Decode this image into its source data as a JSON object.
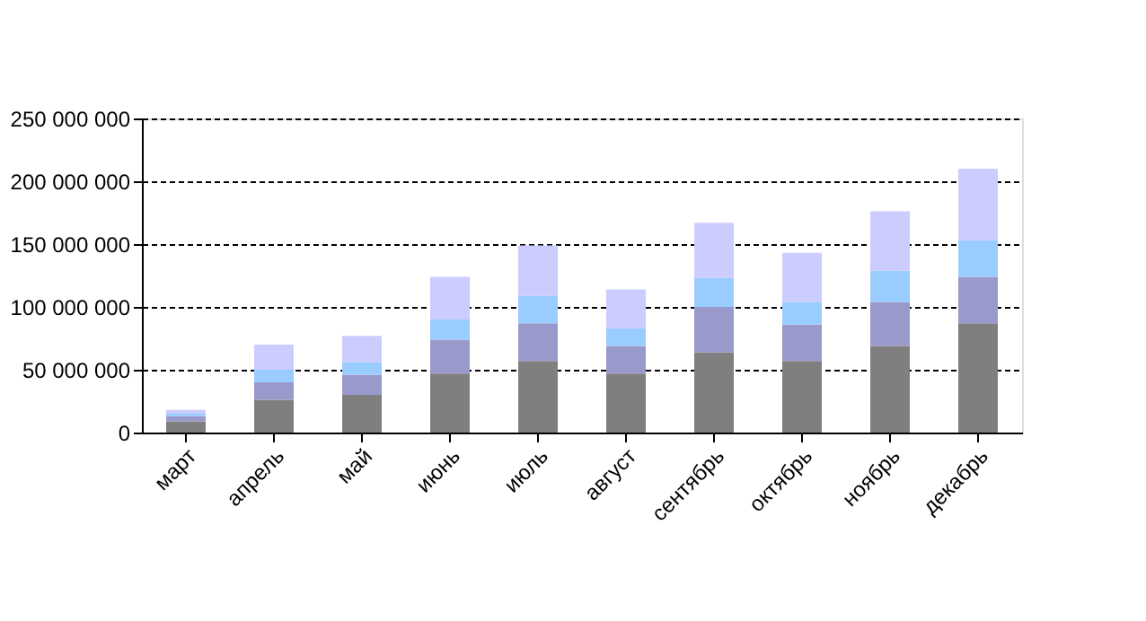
{
  "chart_data": {
    "type": "bar",
    "stacked": true,
    "categories": [
      "март",
      "апрель",
      "май",
      "июнь",
      "июль",
      "август",
      "сентябрь",
      "октябрь",
      "ноябрь",
      "декабрь"
    ],
    "series": [
      {
        "color": "#7f7f7f",
        "values": [
          9000000,
          26000000,
          30000000,
          47000000,
          57000000,
          47000000,
          64000000,
          57000000,
          69000000,
          87000000
        ]
      },
      {
        "color": "#9999cc",
        "values": [
          4000000,
          14000000,
          16000000,
          27000000,
          30000000,
          22000000,
          36000000,
          29000000,
          35000000,
          37000000
        ]
      },
      {
        "color": "#99ccff",
        "values": [
          2000000,
          10000000,
          10000000,
          16000000,
          22000000,
          14000000,
          23000000,
          18000000,
          25000000,
          29000000
        ]
      },
      {
        "color": "#ccccff",
        "values": [
          3000000,
          20000000,
          21000000,
          34000000,
          40000000,
          31000000,
          44000000,
          39000000,
          47000000,
          57000000
        ]
      }
    ],
    "ylim": [
      0,
      250000000
    ],
    "yticks": [
      {
        "value": 0,
        "label": "0"
      },
      {
        "value": 50000000,
        "label": "50 000 000"
      },
      {
        "value": 100000000,
        "label": "100 000 000"
      },
      {
        "value": 150000000,
        "label": "150 000 000"
      },
      {
        "value": 200000000,
        "label": "200 000 000"
      },
      {
        "value": 250000000,
        "label": "250 000 000"
      }
    ],
    "grid": "y",
    "legend": false
  }
}
